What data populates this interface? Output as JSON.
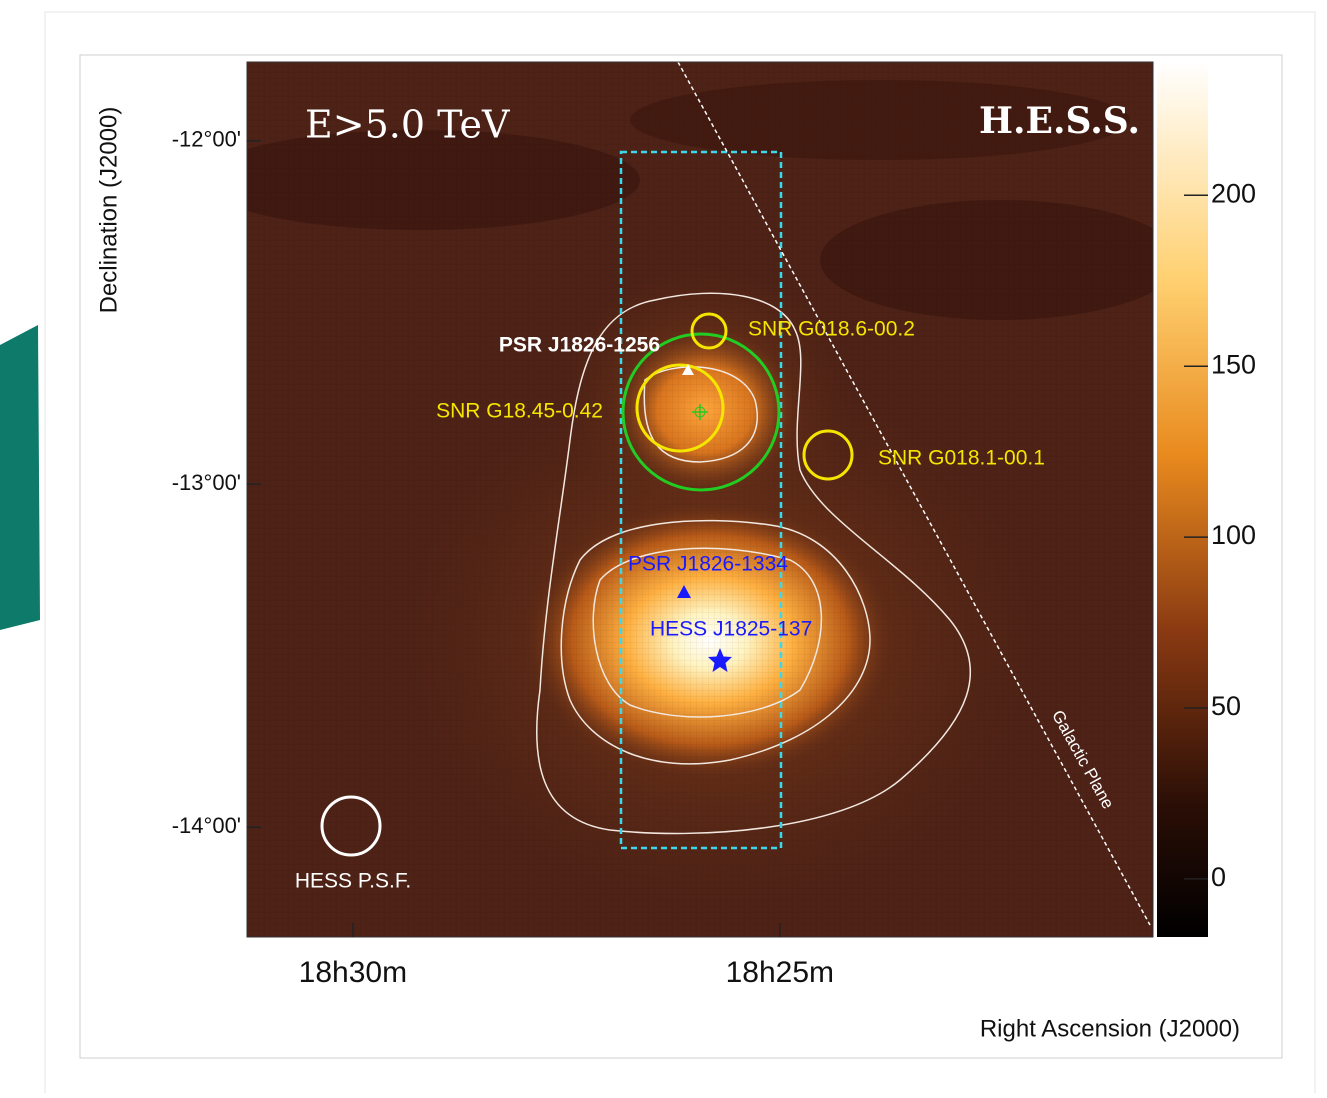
{
  "chart_data": {
    "type": "skymap",
    "title": "E>5.0 TeV",
    "watermark": "H.E.S.S.",
    "xlabel": "Right Ascension (J2000)",
    "ylabel": "Declination (J2000)",
    "xlim": [
      31.24,
      20.63
    ],
    "xticks": [
      {
        "value": 30,
        "label": "18h30m"
      },
      {
        "value": 25,
        "label": "18h25m"
      }
    ],
    "ylim": [
      -14.32,
      -11.77
    ],
    "yticks": [
      {
        "value": -12,
        "label": "-12°00'"
      },
      {
        "value": -13,
        "label": "-13°00'"
      },
      {
        "value": -14,
        "label": "-14°00'"
      }
    ],
    "colorbar": {
      "lim": [
        -17,
        239
      ],
      "ticks": [
        0,
        50,
        100,
        150,
        200
      ]
    },
    "annotations": [
      {
        "text": "PSR J1826-1256",
        "color": "#ffffff"
      },
      {
        "text": "SNR G018.6-00.2",
        "color": "#f5e600"
      },
      {
        "text": "SNR G18.45-0.42",
        "color": "#f5e600"
      },
      {
        "text": "SNR G018.1-00.1",
        "color": "#f5e600"
      },
      {
        "text": "PSR J1826-1334",
        "color": "#1a1aff"
      },
      {
        "text": "HESS J1825-137",
        "color": "#1a1aff"
      },
      {
        "text": "HESS P.S.F.",
        "color": "#ffffff"
      },
      {
        "text": "Galactic Plane",
        "color": "#ffffff"
      }
    ]
  }
}
